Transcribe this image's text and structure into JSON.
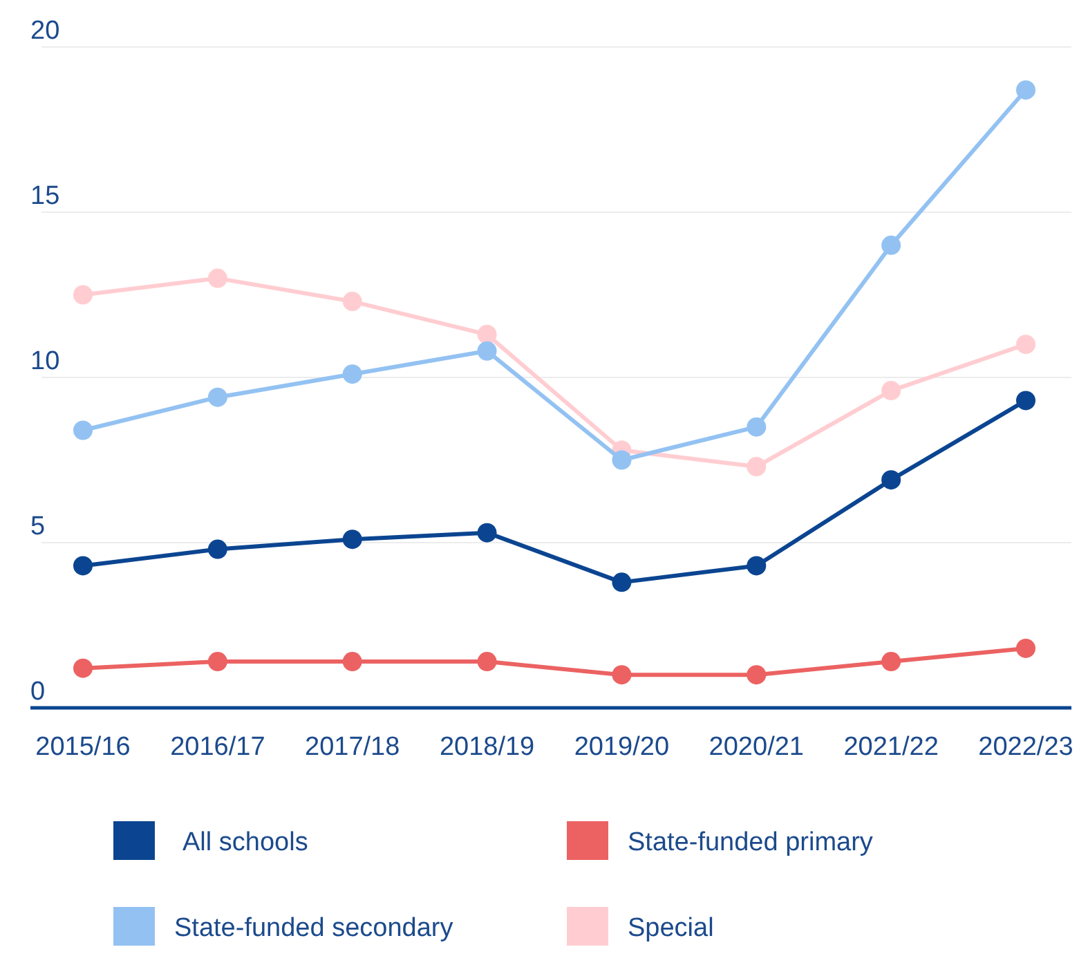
{
  "chart_data": {
    "type": "line",
    "categories": [
      "2015/16",
      "2016/17",
      "2017/18",
      "2018/19",
      "2019/20",
      "2020/21",
      "2021/22",
      "2022/23"
    ],
    "ylim": [
      0,
      20
    ],
    "yticks": [
      0,
      5,
      10,
      15,
      20
    ],
    "grid": "y",
    "legend": "bottom",
    "marker": "circle",
    "line_style": "solid",
    "series": [
      {
        "name": "All schools",
        "color": "#0b4591",
        "values": [
          4.3,
          4.8,
          5.1,
          5.3,
          3.8,
          4.3,
          6.9,
          9.3
        ]
      },
      {
        "name": "State-funded primary",
        "color": "#ec6262",
        "values": [
          1.2,
          1.4,
          1.4,
          1.4,
          1.0,
          1.0,
          1.4,
          1.8
        ]
      },
      {
        "name": "State-funded secondary",
        "color": "#93c2f2",
        "values": [
          8.4,
          9.4,
          10.1,
          10.8,
          7.5,
          8.5,
          14.0,
          18.7
        ]
      },
      {
        "name": "Special",
        "color": "#ffcdd1",
        "values": [
          12.5,
          13.0,
          12.3,
          11.3,
          7.8,
          7.3,
          9.6,
          11.0
        ]
      }
    ]
  }
}
